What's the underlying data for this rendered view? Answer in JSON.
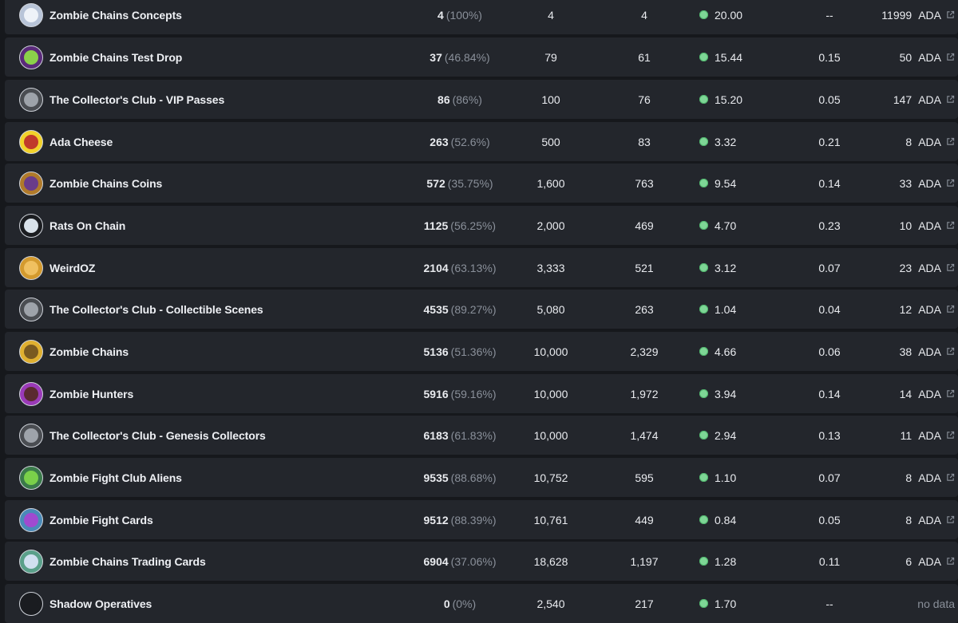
{
  "rows": [
    {
      "name": "Zombie Chains Concepts",
      "owners": "4",
      "owners_pct": "(100%)",
      "supply": "4",
      "listed": "4",
      "floor": "20.00",
      "change": "--",
      "mint_value": "11999",
      "mint_unit": "ADA",
      "avatar_color": "#b8c4d8",
      "avatar_inner": "#eef2f8"
    },
    {
      "name": "Zombie Chains Test Drop",
      "owners": "37",
      "owners_pct": "(46.84%)",
      "supply": "79",
      "listed": "61",
      "floor": "15.44",
      "change": "0.15",
      "mint_value": "50",
      "mint_unit": "ADA",
      "avatar_color": "#5a2a7a",
      "avatar_inner": "#8bd14a"
    },
    {
      "name": "The Collector's Club - VIP Passes",
      "owners": "86",
      "owners_pct": "(86%)",
      "supply": "100",
      "listed": "76",
      "floor": "15.20",
      "change": "0.05",
      "mint_value": "147",
      "mint_unit": "ADA",
      "avatar_color": "#4a4d52",
      "avatar_inner": "#9ea3aa"
    },
    {
      "name": "Ada Cheese",
      "owners": "263",
      "owners_pct": "(52.6%)",
      "supply": "500",
      "listed": "83",
      "floor": "3.32",
      "change": "0.21",
      "mint_value": "8",
      "mint_unit": "ADA",
      "avatar_color": "#f2d22a",
      "avatar_inner": "#c0392b"
    },
    {
      "name": "Zombie Chains Coins",
      "owners": "572",
      "owners_pct": "(35.75%)",
      "supply": "1,600",
      "listed": "763",
      "floor": "9.54",
      "change": "0.14",
      "mint_value": "33",
      "mint_unit": "ADA",
      "avatar_color": "#b07a2a",
      "avatar_inner": "#6a3c8a"
    },
    {
      "name": "Rats On Chain",
      "owners": "1125",
      "owners_pct": "(56.25%)",
      "supply": "2,000",
      "listed": "469",
      "floor": "4.70",
      "change": "0.23",
      "mint_value": "10",
      "mint_unit": "ADA",
      "avatar_color": "#1b1d21",
      "avatar_inner": "#d9e2ea"
    },
    {
      "name": "WeirdOZ",
      "owners": "2104",
      "owners_pct": "(63.13%)",
      "supply": "3,333",
      "listed": "521",
      "floor": "3.12",
      "change": "0.07",
      "mint_value": "23",
      "mint_unit": "ADA",
      "avatar_color": "#d49a2e",
      "avatar_inner": "#f0c060"
    },
    {
      "name": "The Collector's Club - Collectible Scenes",
      "owners": "4535",
      "owners_pct": "(89.27%)",
      "supply": "5,080",
      "listed": "263",
      "floor": "1.04",
      "change": "0.04",
      "mint_value": "12",
      "mint_unit": "ADA",
      "avatar_color": "#4a4d52",
      "avatar_inner": "#9ea3aa"
    },
    {
      "name": "Zombie Chains",
      "owners": "5136",
      "owners_pct": "(51.36%)",
      "supply": "10,000",
      "listed": "2,329",
      "floor": "4.66",
      "change": "0.06",
      "mint_value": "38",
      "mint_unit": "ADA",
      "avatar_color": "#e0b030",
      "avatar_inner": "#7a5a20"
    },
    {
      "name": "Zombie Hunters",
      "owners": "5916",
      "owners_pct": "(59.16%)",
      "supply": "10,000",
      "listed": "1,972",
      "floor": "3.94",
      "change": "0.14",
      "mint_value": "14",
      "mint_unit": "ADA",
      "avatar_color": "#9a3ab8",
      "avatar_inner": "#5a2a30"
    },
    {
      "name": "The Collector's Club - Genesis Collectors",
      "owners": "6183",
      "owners_pct": "(61.83%)",
      "supply": "10,000",
      "listed": "1,474",
      "floor": "2.94",
      "change": "0.13",
      "mint_value": "11",
      "mint_unit": "ADA",
      "avatar_color": "#4a4d52",
      "avatar_inner": "#9ea3aa"
    },
    {
      "name": "Zombie Fight Club Aliens",
      "owners": "9535",
      "owners_pct": "(88.68%)",
      "supply": "10,752",
      "listed": "595",
      "floor": "1.10",
      "change": "0.07",
      "mint_value": "8",
      "mint_unit": "ADA",
      "avatar_color": "#3a7a4a",
      "avatar_inner": "#7ad04a"
    },
    {
      "name": "Zombie Fight Cards",
      "owners": "9512",
      "owners_pct": "(88.39%)",
      "supply": "10,761",
      "listed": "449",
      "floor": "0.84",
      "change": "0.05",
      "mint_value": "8",
      "mint_unit": "ADA",
      "avatar_color": "#4a8ab8",
      "avatar_inner": "#a04ad0"
    },
    {
      "name": "Zombie Chains Trading Cards",
      "owners": "6904",
      "owners_pct": "(37.06%)",
      "supply": "18,628",
      "listed": "1,197",
      "floor": "1.28",
      "change": "0.11",
      "mint_value": "6",
      "mint_unit": "ADA",
      "avatar_color": "#5aa08a",
      "avatar_inner": "#d0e0f0"
    },
    {
      "name": "Shadow Operatives",
      "owners": "0",
      "owners_pct": "(0%)",
      "supply": "2,540",
      "listed": "217",
      "floor": "1.70",
      "change": "--",
      "mint_value": "",
      "mint_unit": "",
      "no_data": "no data",
      "avatar_color": "#1a1c20",
      "avatar_inner": "#1a1c20"
    }
  ],
  "icons": {
    "floor": "ada-coin-icon",
    "link": "external-link-icon"
  },
  "colors": {
    "row_bg": "#23262c",
    "page_bg": "#16181c",
    "muted": "#8a909a",
    "coin": "#7ed696"
  }
}
